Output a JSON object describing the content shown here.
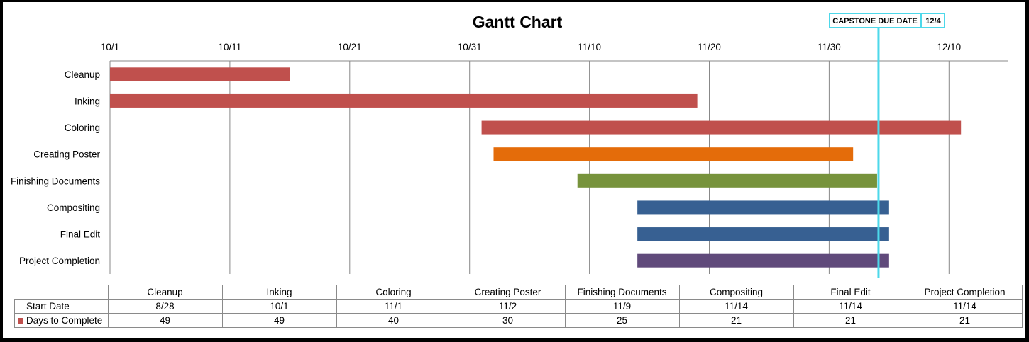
{
  "chart_data": {
    "type": "bar",
    "orientation": "horizontal",
    "stacked": true,
    "title": "Gantt Chart",
    "x_tick_labels": [
      "10/1",
      "10/11",
      "10/21",
      "10/31",
      "11/10",
      "11/20",
      "11/30",
      "12/10"
    ],
    "xlim": [
      "10/1",
      "12/15"
    ],
    "grid": "vertical",
    "categories": [
      "Cleanup",
      "Inking",
      "Coloring",
      "Creating Poster",
      "Finishing Documents",
      "Compositing",
      "Final Edit",
      "Project Completion"
    ],
    "series": [
      {
        "name": "Start Date",
        "values": [
          "8/28",
          "10/1",
          "11/1",
          "11/2",
          "11/9",
          "11/14",
          "11/14",
          "11/14"
        ],
        "visible": false
      },
      {
        "name": "Days to Complete",
        "values": [
          49,
          49,
          40,
          30,
          25,
          21,
          21,
          21
        ],
        "color": "#c0504d"
      }
    ],
    "bar_colors": [
      "#c0504d",
      "#c0504d",
      "#c0504d",
      "#e46c0a",
      "#77933c",
      "#376092",
      "#376092",
      "#604a7b"
    ],
    "annotation": {
      "label": "CAPSTONE DUE DATE",
      "value": "12/4",
      "color": "#4dd8ea"
    }
  }
}
